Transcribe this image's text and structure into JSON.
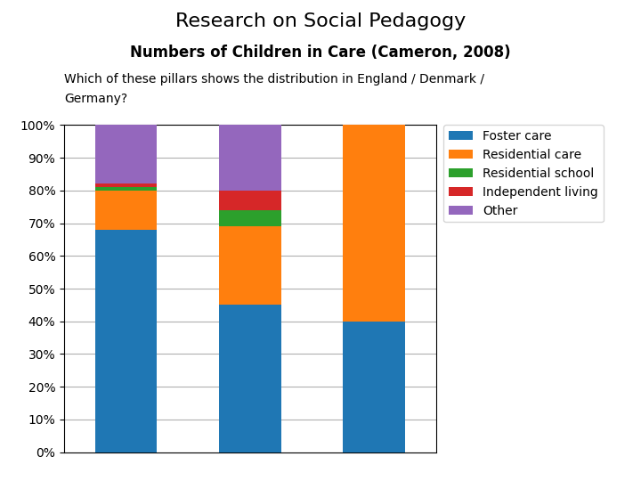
{
  "chart_data": {
    "type": "bar",
    "stacked": true,
    "title": "Research on Social Pedagogy",
    "subtitle": "Numbers of Children in Care (Cameron, 2008)",
    "annotations": [
      "Which of these pillars shows the distribution in England / Denmark /",
      "Germany?"
    ],
    "categories": [
      null,
      null,
      null
    ],
    "series": [
      {
        "name": "Foster care",
        "values": [
          68,
          45,
          40
        ]
      },
      {
        "name": "Residential care",
        "values": [
          12,
          24,
          60
        ]
      },
      {
        "name": "Residential school",
        "values": [
          1,
          5,
          0
        ]
      },
      {
        "name": "Independent living",
        "values": [
          1,
          6,
          0
        ]
      },
      {
        "name": "Other",
        "values": [
          18,
          20,
          0
        ]
      }
    ],
    "ylim": [
      0,
      100
    ],
    "yticks": [
      {
        "value": 0,
        "label": "0%"
      },
      {
        "value": 10,
        "label": "10%"
      },
      {
        "value": 20,
        "label": "20%"
      },
      {
        "value": 30,
        "label": "30%"
      },
      {
        "value": 40,
        "label": "40%"
      },
      {
        "value": 50,
        "label": "50%"
      },
      {
        "value": 60,
        "label": "60%"
      },
      {
        "value": 70,
        "label": "70%"
      },
      {
        "value": 80,
        "label": "80%"
      },
      {
        "value": 90,
        "label": "90%"
      },
      {
        "value": 100,
        "label": "100%"
      }
    ],
    "grid": true,
    "legend": "upper left",
    "tick_labels": "y"
  }
}
